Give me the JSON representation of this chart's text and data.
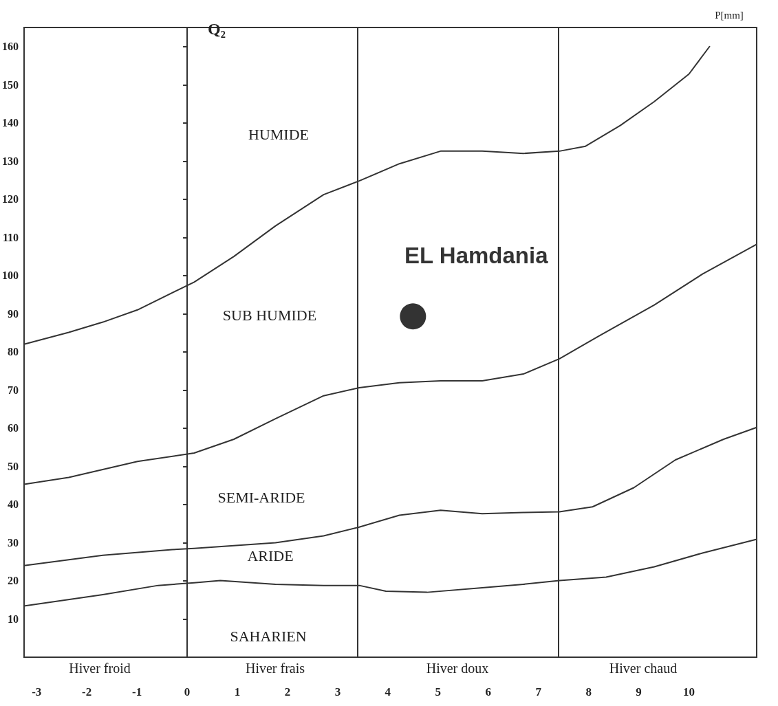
{
  "chart_data": {
    "type": "line",
    "ylabel": "Q₂",
    "xlim": [
      -3.25,
      11.35
    ],
    "xticks": [
      -3,
      -2,
      -1,
      0,
      1,
      2,
      3,
      4,
      5,
      6,
      7,
      8,
      9,
      10
    ],
    "ylim": [
      0,
      165
    ],
    "yticks": [
      10,
      20,
      30,
      40,
      50,
      60,
      70,
      80,
      90,
      100,
      110,
      120,
      130,
      140,
      150,
      160
    ],
    "grid": false,
    "legend": false,
    "marker": "none",
    "line_style": "solid",
    "series": [
      {
        "color": "#333333",
        "x": [
          -3.25,
          -2.36,
          -1.68,
          -0.99,
          0.14,
          0.93,
          1.76,
          2.72,
          3.43,
          4.23,
          5.05,
          5.88,
          6.7,
          7.42,
          7.94,
          8.63,
          9.31,
          10.0,
          10.41
        ],
        "values": [
          82.0,
          85.1,
          87.8,
          91.0,
          98.3,
          105,
          113,
          121.2,
          124.8,
          129.3,
          132.6,
          132.6,
          132,
          132.6,
          133.9,
          139.3,
          145.6,
          152.8,
          160
        ]
      },
      {
        "color": "#333333",
        "x": [
          -3.25,
          -2.36,
          -0.99,
          0.14,
          0.93,
          1.76,
          2.72,
          3.43,
          4.23,
          5.05,
          5.88,
          6.7,
          7.42,
          8.21,
          9.31,
          10.27,
          11.35
        ],
        "values": [
          45.3,
          47.1,
          51.3,
          53.5,
          57.1,
          62.5,
          68.5,
          70.6,
          71.9,
          72.4,
          72.4,
          74.2,
          78.2,
          84.2,
          92.3,
          100.4,
          108.2
        ]
      },
      {
        "color": "#333333",
        "x": [
          -3.25,
          -1.68,
          -0.3,
          0.14,
          1.76,
          2.72,
          3.43,
          4.23,
          5.05,
          5.88,
          6.7,
          7.42,
          8.08,
          8.9,
          9.73,
          10.69,
          11.35
        ],
        "values": [
          24.0,
          26.7,
          28.2,
          28.5,
          30.0,
          31.8,
          34.1,
          37.2,
          38.5,
          37.6,
          37.9,
          38.1,
          39.4,
          44.4,
          51.7,
          57.1,
          60.2
        ]
      },
      {
        "color": "#333333",
        "x": [
          -3.25,
          -1.68,
          -0.58,
          0.14,
          0.66,
          1.76,
          2.72,
          3.43,
          3.96,
          4.78,
          5.88,
          6.7,
          7.42,
          8.35,
          9.31,
          10.27,
          11.35
        ],
        "values": [
          13.4,
          16.4,
          18.8,
          19.5,
          20.1,
          19.1,
          18.8,
          18.8,
          17.3,
          17.0,
          18.2,
          19.1,
          20.1,
          21.0,
          23.7,
          27.3,
          30.9
        ]
      },
      {
        "type": "scatter",
        "name": "EL Hamdania",
        "color": "#000000",
        "marker": "circle",
        "x": [
          4.5
        ],
        "values": [
          89.3
        ]
      }
    ],
    "ref_lines": [
      {
        "axis": "x",
        "value": 0
      },
      {
        "axis": "x",
        "value": 3.4
      },
      {
        "axis": "x",
        "value": 7.4
      }
    ],
    "annotations": [
      "HUMIDE",
      "SUB HUMIDE",
      "SEMI-ARIDE",
      "ARIDE",
      "SAHARIEN",
      "Hiver froid",
      "Hiver frais",
      "Hiver doux",
      "Hiver chaud",
      "P[mm]"
    ]
  }
}
